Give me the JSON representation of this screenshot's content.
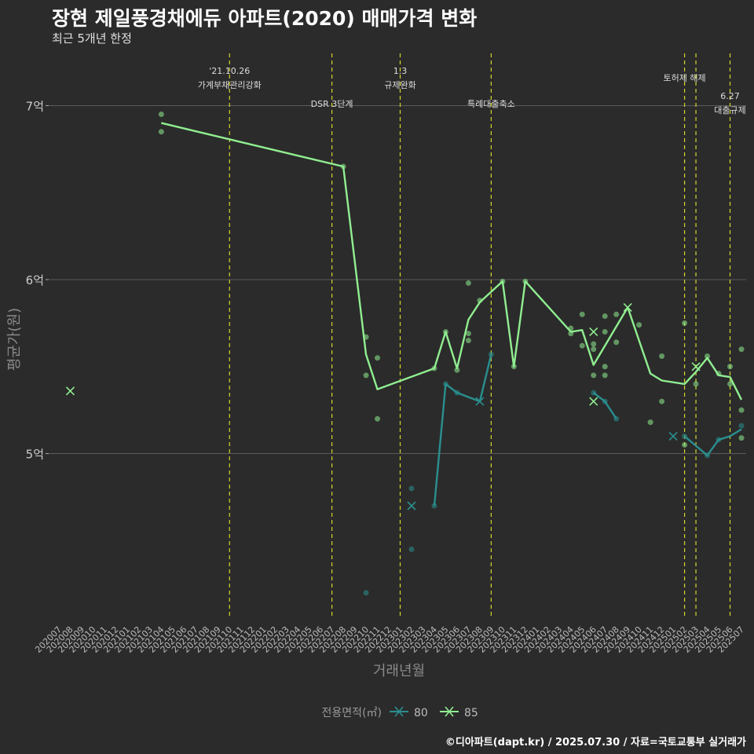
{
  "chart_data": {
    "type": "line",
    "title": "장현 제일풍경채에듀 아파트(2020) 매매가격 변화",
    "subtitle": "최근 5개년 한정",
    "xlabel": "거래년월",
    "ylabel": "평균가(원)",
    "caption": "©디아파트(dapt.kr) / 2025.07.30 / 자료=국토교통부 실거래가",
    "legend_title": "전용면적(㎡)",
    "legend_position": "bottom",
    "months": [
      "202007",
      "202008",
      "202009",
      "202010",
      "202011",
      "202012",
      "202101",
      "202102",
      "202103",
      "202104",
      "202105",
      "202106",
      "202107",
      "202108",
      "202109",
      "202110",
      "202111",
      "202112",
      "202201",
      "202202",
      "202203",
      "202204",
      "202205",
      "202206",
      "202207",
      "202208",
      "202209",
      "202210",
      "202211",
      "202212",
      "202301",
      "202302",
      "202303",
      "202304",
      "202305",
      "202306",
      "202307",
      "202308",
      "202309",
      "202310",
      "202311",
      "202312",
      "202401",
      "202402",
      "202403",
      "202404",
      "202405",
      "202406",
      "202407",
      "202408",
      "202409",
      "202410",
      "202411",
      "202412",
      "202501",
      "202502",
      "202503",
      "202504",
      "202505",
      "202506",
      "202507"
    ],
    "y_ticks": [
      {
        "value": 5.0,
        "label": "5억"
      },
      {
        "value": 6.0,
        "label": "6억"
      },
      {
        "value": 7.0,
        "label": "7억"
      }
    ],
    "ylim": [
      4.05,
      7.3
    ],
    "events": [
      {
        "month": "202110",
        "lines": [
          "'21.10.26",
          "가계부채관리강화"
        ],
        "row": "top"
      },
      {
        "month": "202207",
        "lines": [
          "DSR 3단계"
        ],
        "row": "low"
      },
      {
        "month": "202301",
        "lines": [
          "1.3",
          "규제완화"
        ],
        "row": "top"
      },
      {
        "month": "202309",
        "lines": [
          "특례대출축소"
        ],
        "row": "low"
      },
      {
        "month": "202502",
        "lines": [
          "토허제 해제"
        ],
        "row": "mid"
      },
      {
        "month": "202503",
        "lines": [],
        "row": "none"
      },
      {
        "month": "202506",
        "lines": [
          "6.27",
          "대출규제"
        ],
        "row": "high"
      }
    ],
    "series": [
      {
        "name": "80",
        "color": "#2a8f8f",
        "line": [
          {
            "x": "202304",
            "y": 4.7
          },
          {
            "x": "202305",
            "y": 5.4
          },
          {
            "x": "202306",
            "y": 5.35
          },
          {
            "x": "202308",
            "y": 5.3
          },
          {
            "x": "202309",
            "y": 5.57
          }
        ],
        "line2": [
          {
            "x": "202406",
            "y": 5.35
          },
          {
            "x": "202407",
            "y": 5.3
          },
          {
            "x": "202408",
            "y": 5.2
          }
        ],
        "line3": [
          {
            "x": "202502",
            "y": 5.1
          },
          {
            "x": "202504",
            "y": 4.99
          },
          {
            "x": "202505",
            "y": 5.08
          },
          {
            "x": "202506",
            "y": 5.1
          },
          {
            "x": "202507",
            "y": 5.14
          }
        ],
        "points": [
          {
            "x": "202210",
            "y": 4.2
          },
          {
            "x": "202302",
            "y": 4.8
          },
          {
            "x": "202302",
            "y": 4.45
          },
          {
            "x": "202304",
            "y": 4.7
          },
          {
            "x": "202305",
            "y": 5.4
          },
          {
            "x": "202306",
            "y": 5.35
          },
          {
            "x": "202309",
            "y": 5.57
          },
          {
            "x": "202406",
            "y": 5.35
          },
          {
            "x": "202407",
            "y": 5.3
          },
          {
            "x": "202408",
            "y": 5.2
          },
          {
            "x": "202502",
            "y": 5.1
          },
          {
            "x": "202504",
            "y": 4.99
          },
          {
            "x": "202505",
            "y": 5.08
          },
          {
            "x": "202507",
            "y": 5.16
          }
        ],
        "crosses": [
          {
            "x": "202302",
            "y": 4.7
          },
          {
            "x": "202308",
            "y": 5.3
          },
          {
            "x": "202501",
            "y": 5.1
          }
        ]
      },
      {
        "name": "85",
        "color": "#90ee90",
        "line": [
          {
            "x": "202104",
            "y": 6.9
          },
          {
            "x": "202208",
            "y": 6.65
          },
          {
            "x": "202210",
            "y": 5.57
          },
          {
            "x": "202211",
            "y": 5.37
          },
          {
            "x": "202304",
            "y": 5.49
          },
          {
            "x": "202305",
            "y": 5.7
          },
          {
            "x": "202306",
            "y": 5.49
          },
          {
            "x": "202307",
            "y": 5.77
          },
          {
            "x": "202308",
            "y": 5.87
          },
          {
            "x": "202310",
            "y": 5.99
          },
          {
            "x": "202311",
            "y": 5.5
          },
          {
            "x": "202312",
            "y": 5.99
          },
          {
            "x": "202404",
            "y": 5.7
          },
          {
            "x": "202405",
            "y": 5.71
          },
          {
            "x": "202406",
            "y": 5.51
          },
          {
            "x": "202409",
            "y": 5.84
          },
          {
            "x": "202411",
            "y": 5.46
          },
          {
            "x": "202412",
            "y": 5.42
          },
          {
            "x": "202502",
            "y": 5.4
          },
          {
            "x": "202503",
            "y": 5.47
          },
          {
            "x": "202504",
            "y": 5.55
          },
          {
            "x": "202505",
            "y": 5.45
          },
          {
            "x": "202506",
            "y": 5.44
          },
          {
            "x": "202507",
            "y": 5.31
          }
        ],
        "points": [
          {
            "x": "202104",
            "y": 6.95
          },
          {
            "x": "202104",
            "y": 6.85
          },
          {
            "x": "202208",
            "y": 6.65
          },
          {
            "x": "202210",
            "y": 5.67
          },
          {
            "x": "202210",
            "y": 5.45
          },
          {
            "x": "202211",
            "y": 5.55
          },
          {
            "x": "202211",
            "y": 5.2
          },
          {
            "x": "202304",
            "y": 5.49
          },
          {
            "x": "202305",
            "y": 5.7
          },
          {
            "x": "202306",
            "y": 5.48
          },
          {
            "x": "202307",
            "y": 5.98
          },
          {
            "x": "202307",
            "y": 5.69
          },
          {
            "x": "202307",
            "y": 5.65
          },
          {
            "x": "202308",
            "y": 5.88
          },
          {
            "x": "202310",
            "y": 5.99
          },
          {
            "x": "202311",
            "y": 5.5
          },
          {
            "x": "202312",
            "y": 5.99
          },
          {
            "x": "202404",
            "y": 5.72
          },
          {
            "x": "202404",
            "y": 5.69
          },
          {
            "x": "202405",
            "y": 5.8
          },
          {
            "x": "202405",
            "y": 5.62
          },
          {
            "x": "202406",
            "y": 5.63
          },
          {
            "x": "202406",
            "y": 5.6
          },
          {
            "x": "202406",
            "y": 5.45
          },
          {
            "x": "202407",
            "y": 5.79
          },
          {
            "x": "202407",
            "y": 5.7
          },
          {
            "x": "202407",
            "y": 5.5
          },
          {
            "x": "202407",
            "y": 5.45
          },
          {
            "x": "202408",
            "y": 5.8
          },
          {
            "x": "202408",
            "y": 5.64
          },
          {
            "x": "202410",
            "y": 5.74
          },
          {
            "x": "202411",
            "y": 5.18
          },
          {
            "x": "202412",
            "y": 5.56
          },
          {
            "x": "202412",
            "y": 5.3
          },
          {
            "x": "202502",
            "y": 5.75
          },
          {
            "x": "202502",
            "y": 5.05
          },
          {
            "x": "202503",
            "y": 5.4
          },
          {
            "x": "202504",
            "y": 5.56
          },
          {
            "x": "202505",
            "y": 5.46
          },
          {
            "x": "202506",
            "y": 5.5
          },
          {
            "x": "202506",
            "y": 5.4
          },
          {
            "x": "202507",
            "y": 5.6
          },
          {
            "x": "202507",
            "y": 5.25
          },
          {
            "x": "202507",
            "y": 5.09
          }
        ],
        "crosses": [
          {
            "x": "202008",
            "y": 5.36
          },
          {
            "x": "202406",
            "y": 5.7
          },
          {
            "x": "202406",
            "y": 5.3
          },
          {
            "x": "202409",
            "y": 5.84
          },
          {
            "x": "202503",
            "y": 5.5
          }
        ]
      }
    ]
  }
}
